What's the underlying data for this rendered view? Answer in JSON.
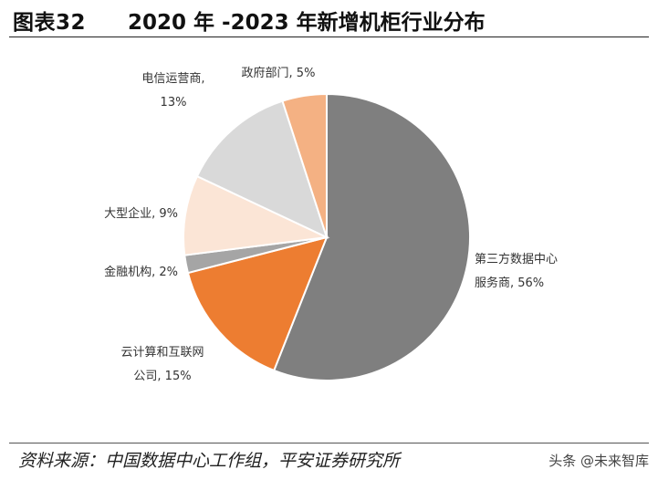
{
  "header": {
    "figure_label": "图表32",
    "title": "2020 年 -2023 年新增机柜行业分布"
  },
  "footer": {
    "source": "资料来源：中国数据中心工作组，平安证券研究所",
    "watermark": "头条 @未来智库"
  },
  "chart_data": {
    "type": "pie",
    "title": "2020 年 -2023 年新增机柜行业分布",
    "slices": [
      {
        "label": "第三方数据中心服务商",
        "display_lines": [
          "第三方数据中心",
          "服务商, 56%"
        ],
        "value": 56,
        "color": "#7f7f7f"
      },
      {
        "label": "云计算和互联网公司",
        "display_lines": [
          "云计算和互联网",
          "公司, 15%"
        ],
        "value": 15,
        "color": "#ed7d31"
      },
      {
        "label": "金融机构",
        "display_lines": [
          "金融机构, 2%"
        ],
        "value": 2,
        "color": "#a5a5a5"
      },
      {
        "label": "大型企业",
        "display_lines": [
          "大型企业, 9%"
        ],
        "value": 9,
        "color": "#fbe5d6"
      },
      {
        "label": "电信运营商",
        "display_lines": [
          "电信运营商,",
          "13%"
        ],
        "value": 13,
        "color": "#d9d9d9"
      },
      {
        "label": "政府部门",
        "display_lines": [
          "政府部门, 5%"
        ],
        "value": 5,
        "color": "#f4b183"
      }
    ]
  }
}
